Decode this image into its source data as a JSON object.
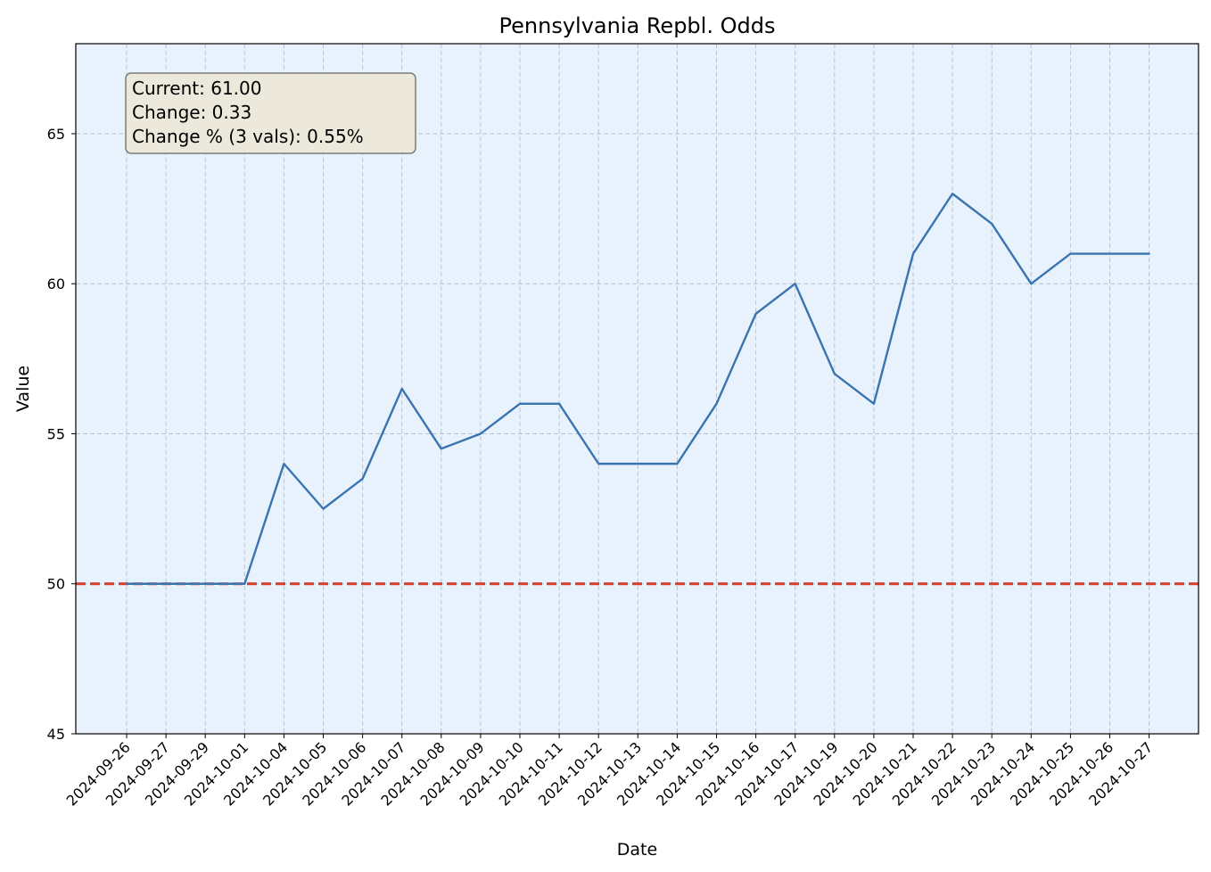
{
  "chart_data": {
    "type": "line",
    "title": "Pennsylvania Repbl. Odds",
    "xlabel": "Date",
    "ylabel": "Value",
    "ylim": [
      45,
      68
    ],
    "yticks": [
      45,
      50,
      55,
      60,
      65
    ],
    "grid": true,
    "categories": [
      "2024-09-26",
      "2024-09-27",
      "2024-09-29",
      "2024-10-01",
      "2024-10-04",
      "2024-10-05",
      "2024-10-06",
      "2024-10-07",
      "2024-10-08",
      "2024-10-09",
      "2024-10-10",
      "2024-10-11",
      "2024-10-12",
      "2024-10-13",
      "2024-10-14",
      "2024-10-15",
      "2024-10-16",
      "2024-10-17",
      "2024-10-19",
      "2024-10-20",
      "2024-10-21",
      "2024-10-22",
      "2024-10-23",
      "2024-10-24",
      "2024-10-25",
      "2024-10-26",
      "2024-10-27"
    ],
    "series": [
      {
        "values": [
          50,
          50,
          50,
          50,
          54,
          52.5,
          53.5,
          56.5,
          54.5,
          55,
          56,
          56,
          54,
          54,
          54,
          56,
          59,
          60,
          57,
          56,
          61,
          63,
          62,
          60,
          61,
          61,
          61
        ],
        "color": "#3a74b0"
      }
    ],
    "reference_line": {
      "value": 50,
      "color": "#d63a2c",
      "style": "dashed"
    },
    "annotation": {
      "lines": [
        "Current: 61.00",
        "Change: 0.33",
        "Change % (3 vals): 0.55%"
      ],
      "position": "top-left"
    },
    "colors": {
      "plot_background": "#e8f2fc",
      "grid": "#b7c4d0",
      "annotation_background": "#ece9dc",
      "annotation_border": "#7a7a7a"
    }
  }
}
